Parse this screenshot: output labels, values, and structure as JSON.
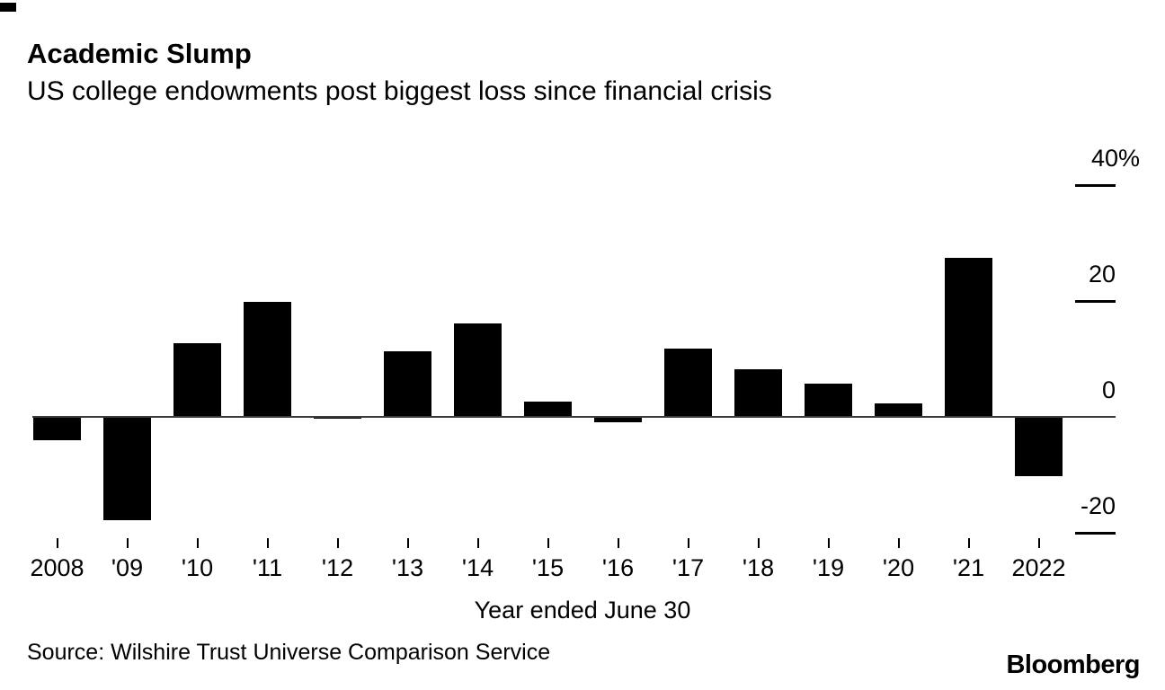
{
  "header": {
    "title": "Academic Slump",
    "subtitle": "US college endowments post biggest loss since financial crisis"
  },
  "chart_data": {
    "type": "bar",
    "categories": [
      "2008",
      "'09",
      "'10",
      "'11",
      "'12",
      "'13",
      "'14",
      "'15",
      "'16",
      "'17",
      "'18",
      "'19",
      "'20",
      "'21",
      "2022"
    ],
    "values": [
      -4.1,
      -17.9,
      12.7,
      19.8,
      -0.3,
      11.3,
      16.2,
      2.7,
      -0.9,
      11.8,
      8.2,
      5.8,
      2.3,
      27.4,
      -10.2
    ],
    "title": "Academic Slump",
    "subtitle": "US college endowments post biggest loss since financial crisis",
    "xlabel": "Year ended June 30",
    "ylabel": "",
    "unit": "%",
    "ylim": [
      -25,
      42
    ],
    "y_ticks": [
      {
        "value": 40,
        "label": "40%"
      },
      {
        "value": 20,
        "label": "20"
      },
      {
        "value": 0,
        "label": "0"
      },
      {
        "value": -20,
        "label": "-20"
      }
    ],
    "bar_color": "#000000",
    "axis_color": "#3a3a3a",
    "grid": false,
    "legend": false
  },
  "x_axis": {
    "caption": "Year ended June 30"
  },
  "footer": {
    "source": "Source: Wilshire Trust Universe Comparison Service",
    "logo": "Bloomberg"
  }
}
